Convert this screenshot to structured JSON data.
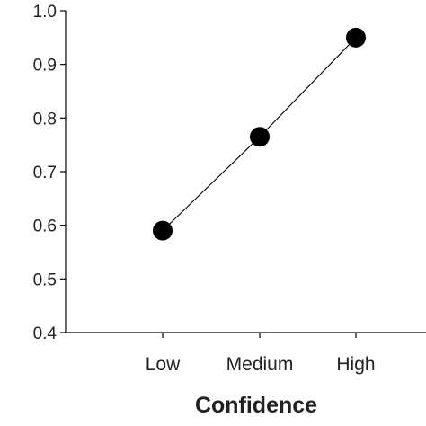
{
  "chart_data": {
    "type": "line",
    "categories": [
      "Low",
      "Medium",
      "High"
    ],
    "series": [
      {
        "values": [
          0.59,
          0.765,
          0.95
        ]
      }
    ],
    "xlabel": "Confidence",
    "ylabel": "",
    "ylim": [
      0.4,
      1.0
    ],
    "yticks": [
      "0.4",
      "0.5",
      "0.6",
      "0.7",
      "0.8",
      "0.9",
      "1.0"
    ],
    "grid": false,
    "legend": "none",
    "colors": {
      "line": "#000000",
      "marker": "#000000"
    }
  }
}
